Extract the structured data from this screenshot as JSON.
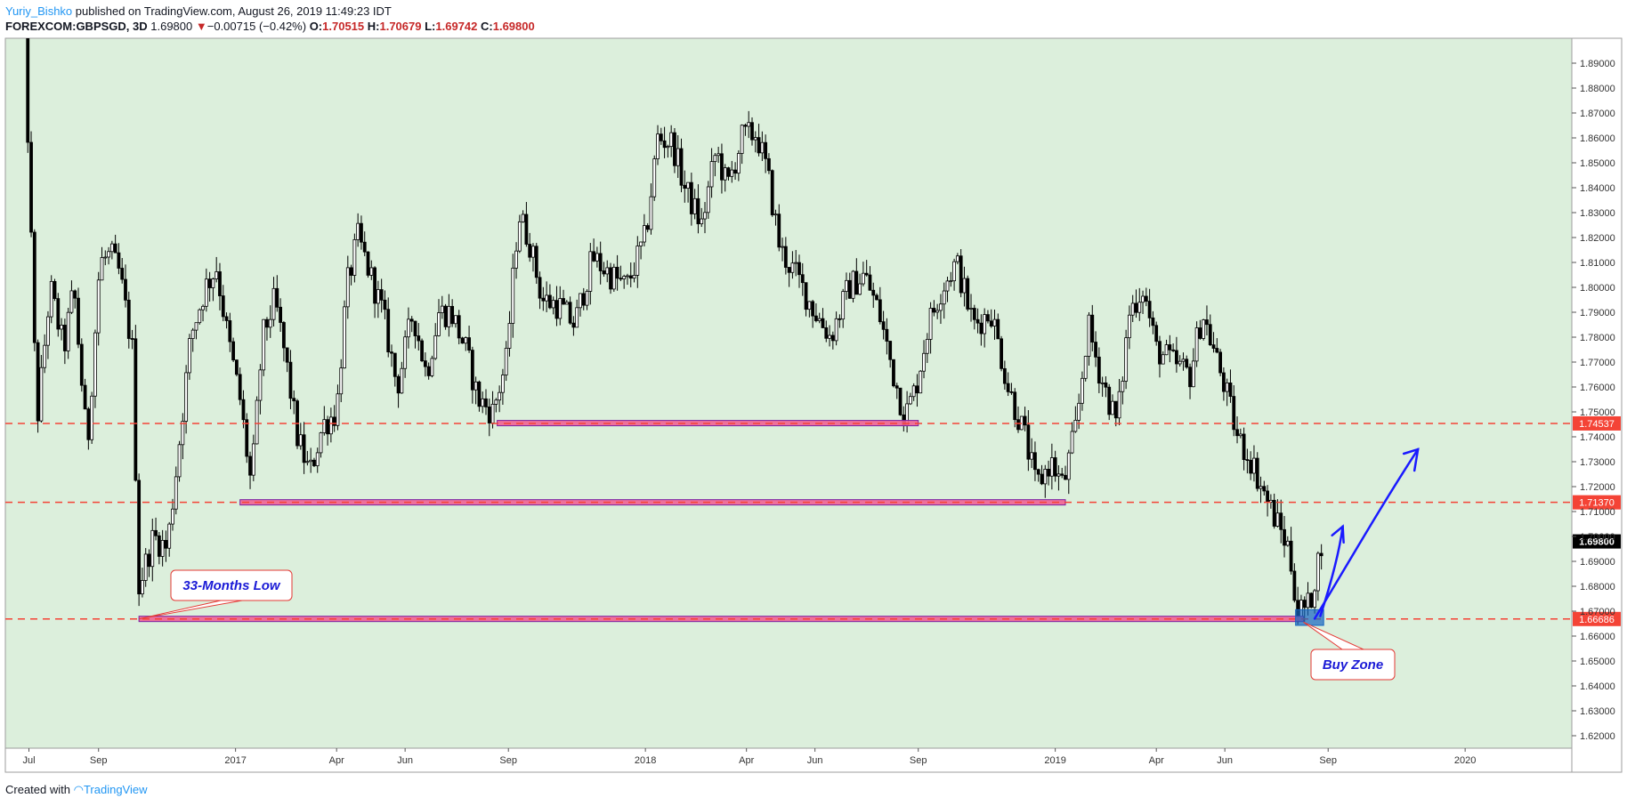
{
  "header": {
    "author": "Yuriy_Bishko",
    "published": "published on TradingView.com, August 26, 2019 11:49:23 IDT",
    "symbol": "FOREXCOM:GBPSGD, 3D",
    "last": "1.69800",
    "change": "−0.00715 (−0.42%)",
    "open_label": "O:",
    "open": "1.70515",
    "high_label": "H:",
    "high": "1.70679",
    "low_label": "L:",
    "low": "1.69742",
    "close_label": "C:",
    "close": "1.69800"
  },
  "footer": {
    "created_with": "Created with",
    "brand": "TradingView"
  },
  "colors": {
    "background": "#dcefdc",
    "candle": "#000000",
    "dashed_level": "#f44336",
    "zone_fill": "#f06292",
    "zone_border": "#7b1fa2",
    "buy_zone": "#1565c0",
    "arrow": "#1a1aff",
    "callout_border": "#e53935",
    "callout_text": "#1a1ad6",
    "price_tag": "#f44336",
    "last_price_tag": "#000000"
  },
  "chart_data": {
    "type": "candlestick",
    "title": "FOREXCOM:GBPSGD, 3D",
    "ylim": [
      1.615,
      1.9
    ],
    "y_ticks": [
      "1.62000",
      "1.63000",
      "1.64000",
      "1.65000",
      "1.66000",
      "1.67000",
      "1.68000",
      "1.69000",
      "1.70000",
      "1.71000",
      "1.72000",
      "1.73000",
      "1.74000",
      "1.75000",
      "1.76000",
      "1.77000",
      "1.78000",
      "1.79000",
      "1.80000",
      "1.81000",
      "1.82000",
      "1.83000",
      "1.84000",
      "1.85000",
      "1.86000",
      "1.87000",
      "1.88000",
      "1.89000"
    ],
    "x_ticks": [
      "Jul",
      "Sep",
      "2017",
      "Apr",
      "Jun",
      "Sep",
      "2018",
      "Apr",
      "Jun",
      "Sep",
      "2019",
      "Apr",
      "Jun",
      "Sep",
      "2020"
    ],
    "x_tick_dates": [
      "2016-07-01",
      "2016-09-01",
      "2017-01-01",
      "2017-04-01",
      "2017-06-01",
      "2017-09-01",
      "2018-01-01",
      "2018-04-01",
      "2018-06-01",
      "2018-09-01",
      "2019-01-01",
      "2019-04-01",
      "2019-06-01",
      "2019-09-01",
      "2020-01-01"
    ],
    "x_range": [
      "2016-06-10",
      "2020-04-05"
    ],
    "grid": false,
    "price_path": [
      [
        "2016-06-24",
        1.95
      ],
      [
        "2016-07-08",
        1.745
      ],
      [
        "2016-07-20",
        1.8
      ],
      [
        "2016-08-01",
        1.775
      ],
      [
        "2016-08-10",
        1.8
      ],
      [
        "2016-08-22",
        1.735
      ],
      [
        "2016-09-02",
        1.81
      ],
      [
        "2016-09-12",
        1.813
      ],
      [
        "2016-09-20",
        1.805
      ],
      [
        "2016-10-01",
        1.775
      ],
      [
        "2016-10-07",
        1.68
      ],
      [
        "2016-10-20",
        1.7
      ],
      [
        "2016-11-01",
        1.695
      ],
      [
        "2016-11-10",
        1.73
      ],
      [
        "2016-11-22",
        1.78
      ],
      [
        "2016-12-05",
        1.8
      ],
      [
        "2016-12-15",
        1.808
      ],
      [
        "2016-12-25",
        1.78
      ],
      [
        "2017-01-05",
        1.755
      ],
      [
        "2017-01-15",
        1.72
      ],
      [
        "2017-01-25",
        1.78
      ],
      [
        "2017-02-05",
        1.795
      ],
      [
        "2017-02-15",
        1.77
      ],
      [
        "2017-02-25",
        1.74
      ],
      [
        "2017-03-08",
        1.725
      ],
      [
        "2017-03-20",
        1.745
      ],
      [
        "2017-04-01",
        1.75
      ],
      [
        "2017-04-10",
        1.8
      ],
      [
        "2017-04-20",
        1.82
      ],
      [
        "2017-05-01",
        1.805
      ],
      [
        "2017-05-12",
        1.79
      ],
      [
        "2017-05-25",
        1.76
      ],
      [
        "2017-06-08",
        1.79
      ],
      [
        "2017-06-20",
        1.765
      ],
      [
        "2017-07-01",
        1.79
      ],
      [
        "2017-07-12",
        1.79
      ],
      [
        "2017-07-25",
        1.775
      ],
      [
        "2017-08-05",
        1.755
      ],
      [
        "2017-08-18",
        1.75
      ],
      [
        "2017-08-30",
        1.77
      ],
      [
        "2017-09-10",
        1.83
      ],
      [
        "2017-09-20",
        1.818
      ],
      [
        "2017-10-01",
        1.795
      ],
      [
        "2017-10-15",
        1.793
      ],
      [
        "2017-10-30",
        1.785
      ],
      [
        "2017-11-15",
        1.812
      ],
      [
        "2017-12-01",
        1.805
      ],
      [
        "2017-12-15",
        1.8
      ],
      [
        "2018-01-01",
        1.82
      ],
      [
        "2018-01-12",
        1.86
      ],
      [
        "2018-01-25",
        1.858
      ],
      [
        "2018-02-05",
        1.84
      ],
      [
        "2018-02-20",
        1.825
      ],
      [
        "2018-03-05",
        1.855
      ],
      [
        "2018-03-15",
        1.84
      ],
      [
        "2018-03-28",
        1.86
      ],
      [
        "2018-04-10",
        1.862
      ],
      [
        "2018-04-20",
        1.845
      ],
      [
        "2018-05-01",
        1.815
      ],
      [
        "2018-05-15",
        1.805
      ],
      [
        "2018-06-01",
        1.79
      ],
      [
        "2018-06-15",
        1.78
      ],
      [
        "2018-07-01",
        1.8
      ],
      [
        "2018-07-15",
        1.805
      ],
      [
        "2018-07-28",
        1.79
      ],
      [
        "2018-08-10",
        1.765
      ],
      [
        "2018-08-20",
        1.748
      ],
      [
        "2018-08-30",
        1.76
      ],
      [
        "2018-09-10",
        1.785
      ],
      [
        "2018-09-22",
        1.8
      ],
      [
        "2018-10-05",
        1.81
      ],
      [
        "2018-10-20",
        1.785
      ],
      [
        "2018-11-05",
        1.79
      ],
      [
        "2018-11-20",
        1.76
      ],
      [
        "2018-12-05",
        1.74
      ],
      [
        "2018-12-15",
        1.72
      ],
      [
        "2018-12-28",
        1.73
      ],
      [
        "2019-01-08",
        1.72
      ],
      [
        "2019-01-20",
        1.745
      ],
      [
        "2019-01-30",
        1.785
      ],
      [
        "2019-02-10",
        1.765
      ],
      [
        "2019-02-25",
        1.745
      ],
      [
        "2019-03-08",
        1.79
      ],
      [
        "2019-03-20",
        1.8
      ],
      [
        "2019-04-01",
        1.775
      ],
      [
        "2019-04-15",
        1.77
      ],
      [
        "2019-05-01",
        1.765
      ],
      [
        "2019-05-12",
        1.79
      ],
      [
        "2019-05-22",
        1.775
      ],
      [
        "2019-06-01",
        1.76
      ],
      [
        "2019-06-12",
        1.74
      ],
      [
        "2019-06-25",
        1.73
      ],
      [
        "2019-07-08",
        1.715
      ],
      [
        "2019-07-18",
        1.705
      ],
      [
        "2019-07-28",
        1.695
      ],
      [
        "2019-08-05",
        1.67
      ],
      [
        "2019-08-15",
        1.672
      ],
      [
        "2019-08-23",
        1.69
      ],
      [
        "2019-08-26",
        1.698
      ]
    ],
    "last_price": 1.698,
    "horizontal_levels": [
      {
        "value": 1.74537,
        "label": "1.74537",
        "style": "dashed"
      },
      {
        "value": 1.7137,
        "label": "1.71370",
        "style": "dashed"
      },
      {
        "value": 1.66686,
        "label": "1.66686",
        "style": "dashed"
      }
    ],
    "zones": [
      {
        "from": "2017-08-22",
        "to": "2018-09-01",
        "value": 1.7455
      },
      {
        "from": "2017-01-05",
        "to": "2019-01-10",
        "value": 1.7137
      },
      {
        "from": "2016-10-07",
        "to": "2019-08-10",
        "value": 1.6669
      }
    ],
    "buy_zone": {
      "from": "2019-08-03",
      "to": "2019-08-28",
      "low": 1.6643,
      "high": 1.6706
    },
    "annotations": [
      {
        "text": "33-Months Low",
        "anchor_date": "2016-10-07",
        "anchor_value": 1.6669
      },
      {
        "text": "Buy Zone",
        "anchor_date": "2019-08-10",
        "anchor_value": 1.6656
      }
    ]
  }
}
